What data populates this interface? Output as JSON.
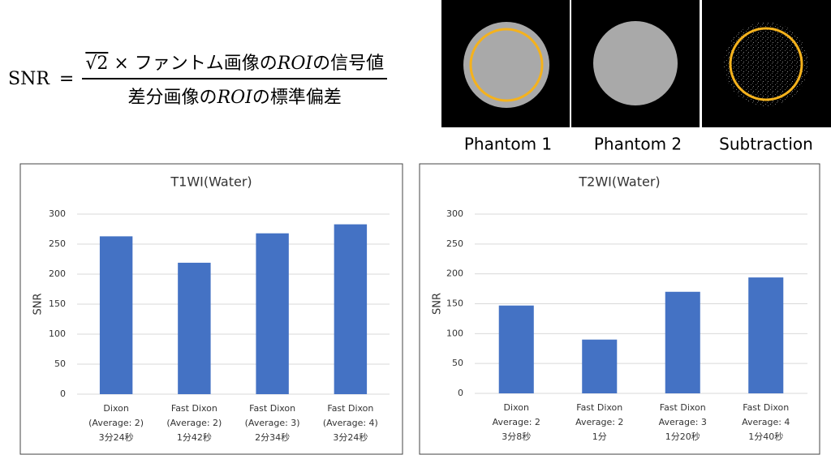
{
  "formula": {
    "lhs": "SNR",
    "equals": "=",
    "numerator": [
      "√2",
      "×",
      "ファントム画像の",
      "ROI",
      "の信号値"
    ],
    "denominator": [
      "差分画像の",
      "ROI",
      "の標準偏差"
    ]
  },
  "images": {
    "captions": [
      "Phantom 1",
      "Phantom 2",
      "Subtraction"
    ]
  },
  "chart_data": [
    {
      "type": "bar",
      "title": "T1WI(Water)",
      "y_label": "SNR",
      "categories": [
        [
          "Dixon",
          "(Average: 2)",
          "3分24秒"
        ],
        [
          "Fast Dixon",
          "(Average: 2)",
          "1分42秒"
        ],
        [
          "Fast Dixon",
          "(Average: 3)",
          "2分34秒"
        ],
        [
          "Fast Dixon",
          "(Average: 4)",
          "3分24秒"
        ]
      ],
      "values": [
        263,
        219,
        268,
        283
      ],
      "color": "#4472c4",
      "ylim": [
        0,
        300
      ],
      "yticks": [
        0,
        50,
        100,
        150,
        200,
        250,
        300
      ],
      "grid": true
    },
    {
      "type": "bar",
      "title": "T2WI(Water)",
      "y_label": "SNR",
      "categories": [
        [
          "Dixon",
          "Average: 2",
          "3分8秒"
        ],
        [
          "Fast Dixon",
          "Average: 2",
          "1分"
        ],
        [
          "Fast Dixon",
          "Average: 3",
          "1分20秒"
        ],
        [
          "Fast Dixon",
          "Average: 4",
          "1分40秒"
        ]
      ],
      "values": [
        147,
        90,
        170,
        194
      ],
      "color": "#4472c4",
      "ylim": [
        0,
        300
      ],
      "yticks": [
        0,
        50,
        100,
        150,
        200,
        250,
        300
      ],
      "grid": true
    }
  ]
}
